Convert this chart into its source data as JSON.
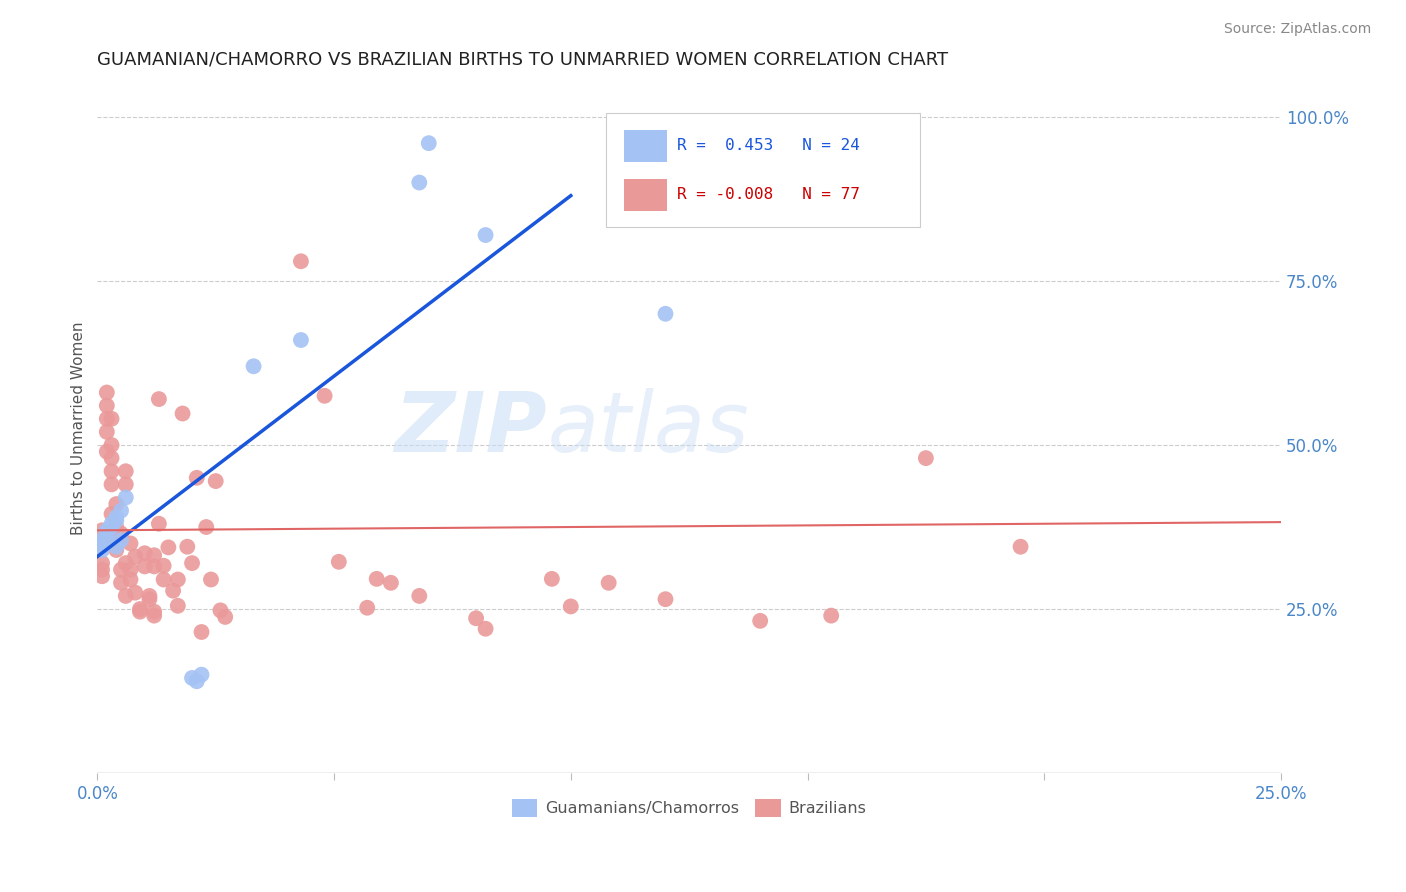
{
  "title": "GUAMANIAN/CHAMORRO VS BRAZILIAN BIRTHS TO UNMARRIED WOMEN CORRELATION CHART",
  "source": "Source: ZipAtlas.com",
  "ylabel": "Births to Unmarried Women",
  "guamanian_color": "#a4c2f4",
  "brazilian_color": "#ea9999",
  "trendline_guamanian": "#1a56db",
  "trendline_brazilian": "#e06666",
  "watermark_zip": "ZIP",
  "watermark_atlas": "atlas",
  "guam_points": [
    [
      0.001,
      0.355
    ],
    [
      0.001,
      0.34
    ],
    [
      0.001,
      0.345
    ],
    [
      0.001,
      0.35
    ],
    [
      0.002,
      0.36
    ],
    [
      0.002,
      0.365
    ],
    [
      0.002,
      0.37
    ],
    [
      0.003,
      0.38
    ],
    [
      0.003,
      0.375
    ],
    [
      0.004,
      0.385
    ],
    [
      0.004,
      0.39
    ],
    [
      0.004,
      0.345
    ],
    [
      0.005,
      0.355
    ],
    [
      0.005,
      0.4
    ],
    [
      0.006,
      0.42
    ],
    [
      0.02,
      0.145
    ],
    [
      0.021,
      0.14
    ],
    [
      0.022,
      0.15
    ],
    [
      0.033,
      0.62
    ],
    [
      0.043,
      0.66
    ],
    [
      0.068,
      0.9
    ],
    [
      0.07,
      0.96
    ],
    [
      0.082,
      0.82
    ],
    [
      0.12,
      0.7
    ]
  ],
  "brazil_points": [
    [
      0.001,
      0.345
    ],
    [
      0.001,
      0.32
    ],
    [
      0.001,
      0.31
    ],
    [
      0.001,
      0.3
    ],
    [
      0.001,
      0.355
    ],
    [
      0.001,
      0.37
    ],
    [
      0.002,
      0.49
    ],
    [
      0.002,
      0.54
    ],
    [
      0.002,
      0.52
    ],
    [
      0.002,
      0.56
    ],
    [
      0.002,
      0.58
    ],
    [
      0.003,
      0.44
    ],
    [
      0.003,
      0.46
    ],
    [
      0.003,
      0.5
    ],
    [
      0.003,
      0.48
    ],
    [
      0.003,
      0.54
    ],
    [
      0.003,
      0.395
    ],
    [
      0.004,
      0.41
    ],
    [
      0.004,
      0.375
    ],
    [
      0.004,
      0.34
    ],
    [
      0.004,
      0.355
    ],
    [
      0.004,
      0.36
    ],
    [
      0.005,
      0.365
    ],
    [
      0.005,
      0.31
    ],
    [
      0.005,
      0.29
    ],
    [
      0.006,
      0.32
    ],
    [
      0.006,
      0.27
    ],
    [
      0.006,
      0.44
    ],
    [
      0.006,
      0.46
    ],
    [
      0.007,
      0.35
    ],
    [
      0.007,
      0.295
    ],
    [
      0.007,
      0.31
    ],
    [
      0.008,
      0.275
    ],
    [
      0.008,
      0.33
    ],
    [
      0.009,
      0.25
    ],
    [
      0.009,
      0.246
    ],
    [
      0.01,
      0.315
    ],
    [
      0.01,
      0.335
    ],
    [
      0.011,
      0.265
    ],
    [
      0.011,
      0.27
    ],
    [
      0.012,
      0.24
    ],
    [
      0.012,
      0.246
    ],
    [
      0.012,
      0.315
    ],
    [
      0.012,
      0.332
    ],
    [
      0.013,
      0.38
    ],
    [
      0.013,
      0.57
    ],
    [
      0.014,
      0.295
    ],
    [
      0.014,
      0.316
    ],
    [
      0.015,
      0.344
    ],
    [
      0.016,
      0.278
    ],
    [
      0.017,
      0.255
    ],
    [
      0.017,
      0.295
    ],
    [
      0.018,
      0.548
    ],
    [
      0.019,
      0.345
    ],
    [
      0.02,
      0.32
    ],
    [
      0.021,
      0.45
    ],
    [
      0.022,
      0.215
    ],
    [
      0.023,
      0.375
    ],
    [
      0.024,
      0.295
    ],
    [
      0.025,
      0.445
    ],
    [
      0.026,
      0.248
    ],
    [
      0.027,
      0.238
    ],
    [
      0.043,
      0.78
    ],
    [
      0.048,
      0.575
    ],
    [
      0.051,
      0.322
    ],
    [
      0.057,
      0.252
    ],
    [
      0.059,
      0.296
    ],
    [
      0.062,
      0.29
    ],
    [
      0.068,
      0.27
    ],
    [
      0.08,
      0.236
    ],
    [
      0.082,
      0.22
    ],
    [
      0.096,
      0.296
    ],
    [
      0.1,
      0.254
    ],
    [
      0.108,
      0.29
    ],
    [
      0.12,
      0.265
    ],
    [
      0.14,
      0.232
    ],
    [
      0.155,
      0.24
    ],
    [
      0.175,
      0.48
    ],
    [
      0.195,
      0.345
    ]
  ],
  "xlim": [
    0.0,
    0.25
  ],
  "ylim": [
    0.0,
    1.05
  ],
  "xticks_shown": [
    0.0,
    0.25
  ],
  "xtick_minor": [
    0.05,
    0.1,
    0.15,
    0.2
  ],
  "yticks_right": [
    0.25,
    0.5,
    0.75,
    1.0
  ],
  "guam_trend": [
    0.0,
    0.1
  ],
  "guam_trend_intercept": 0.33,
  "guam_trend_slope": 5.5,
  "brazil_trend_intercept": 0.37,
  "brazil_trend_slope": 0.05
}
